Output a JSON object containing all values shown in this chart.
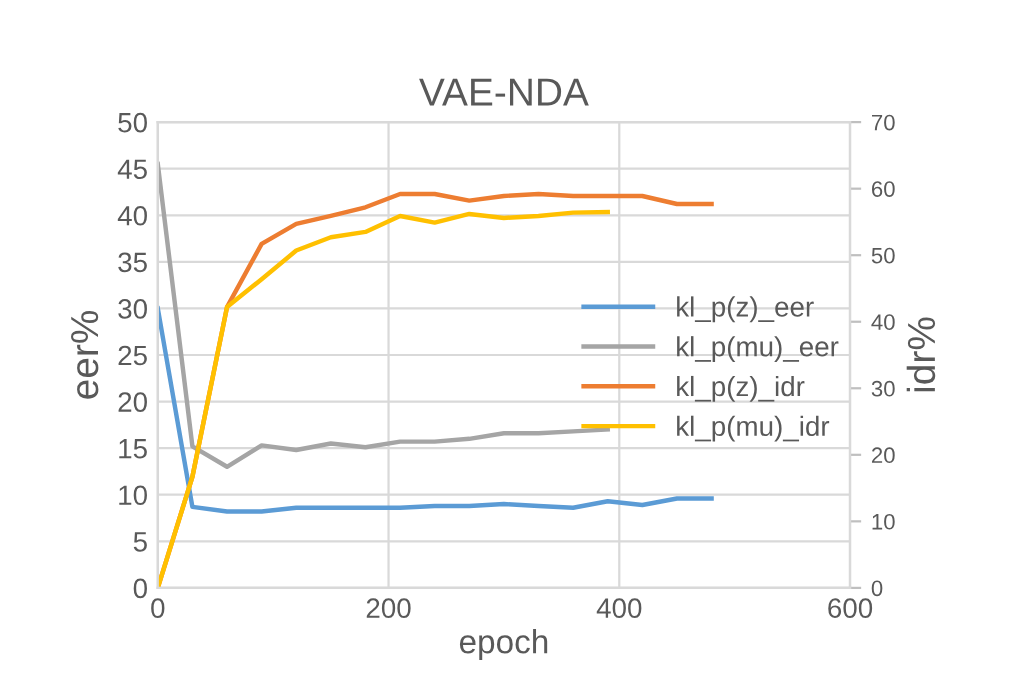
{
  "chart_data": {
    "type": "line",
    "title": "VAE-NDA",
    "xlabel": "epoch",
    "ylabel": "eer%",
    "y2label": "idr%",
    "xlim": [
      0,
      600
    ],
    "xticks": [
      0,
      200,
      400,
      600
    ],
    "ylim": [
      0,
      50
    ],
    "yticks": [
      0,
      5,
      10,
      15,
      20,
      25,
      30,
      35,
      40,
      45,
      50
    ],
    "y2lim": [
      0,
      70
    ],
    "y2ticks": [
      0,
      10,
      20,
      30,
      40,
      50,
      60,
      70
    ],
    "grid": true,
    "legend": "right",
    "marker": "none",
    "line_style": "solid",
    "series": [
      {
        "name": "kl_p(z)_eer",
        "color": "#5b9bd5",
        "x": [
          0,
          30,
          60,
          90,
          120,
          150,
          180,
          210,
          240,
          270,
          300,
          330,
          360,
          390,
          420,
          450,
          480
        ],
        "values": [
          30,
          8.7,
          8.2,
          8.2,
          8.6,
          8.6,
          8.6,
          8.6,
          8.8,
          8.8,
          9.0,
          8.8,
          8.6,
          9.3,
          8.9,
          9.6,
          9.6
        ]
      },
      {
        "name": "kl_p(mu)_eer",
        "color": "#a5a5a5",
        "x": [
          0,
          30,
          60,
          90,
          120,
          150,
          180,
          210,
          240,
          270,
          300,
          330,
          360,
          390
        ],
        "values": [
          45.5,
          15.2,
          13.0,
          15.3,
          14.8,
          15.5,
          15.1,
          15.7,
          15.7,
          16.0,
          16.6,
          16.6,
          16.8,
          17.0
        ]
      },
      {
        "name": "kl_p(z)_idr",
        "color": "#ed7d31",
        "axis": "y2",
        "x": [
          0,
          30,
          60,
          90,
          120,
          150,
          180,
          210,
          240,
          270,
          300,
          330,
          360,
          390,
          420,
          450,
          480
        ],
        "values": [
          0,
          16.7,
          42.2,
          51.7,
          54.7,
          55.9,
          57.2,
          59.2,
          59.2,
          58.2,
          58.9,
          59.2,
          58.9,
          58.9,
          58.9,
          57.7,
          57.7
        ]
      },
      {
        "name": "kl_p(mu)_idr",
        "color": "#ffc000",
        "axis": "y2",
        "x": [
          0,
          30,
          60,
          90,
          120,
          150,
          180,
          210,
          240,
          270,
          300,
          330,
          360,
          390
        ],
        "values": [
          0,
          16.7,
          42.2,
          46.4,
          50.7,
          52.7,
          53.5,
          55.9,
          54.9,
          56.2,
          55.6,
          55.9,
          56.4,
          56.5
        ]
      }
    ]
  }
}
